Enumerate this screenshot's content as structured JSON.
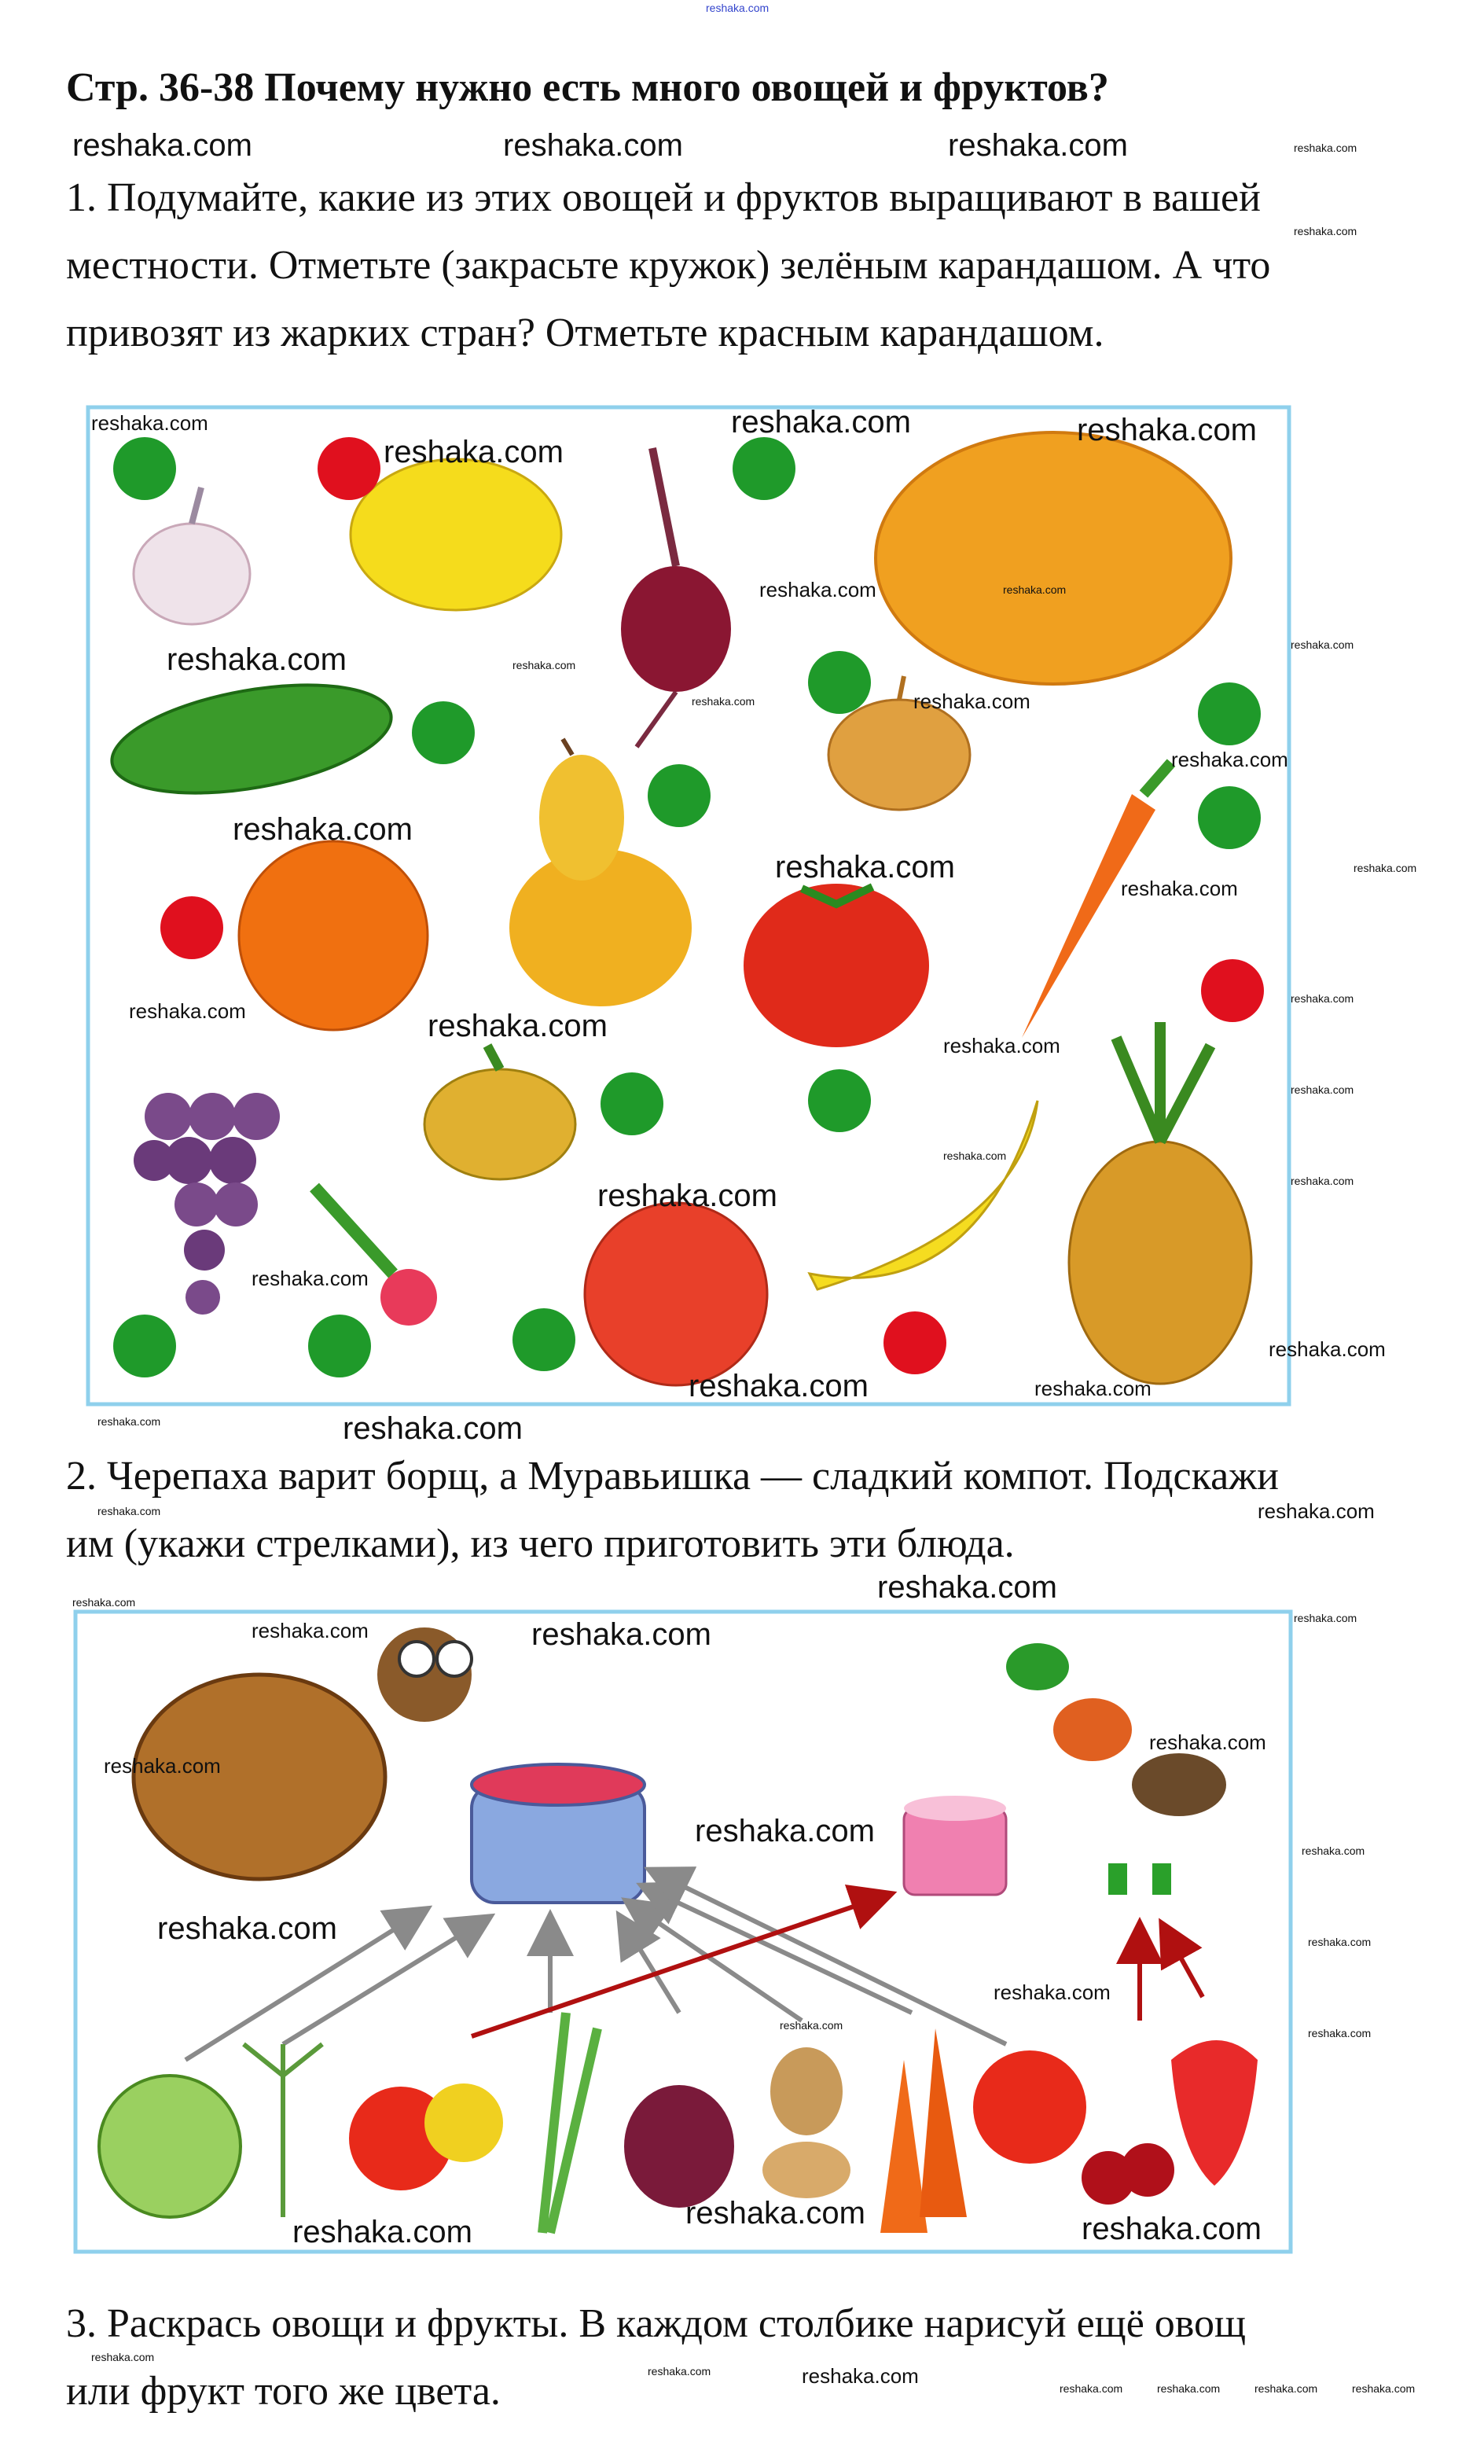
{
  "watermark": "reshaka.com",
  "title": "Стр. 36-38 Почему нужно есть много овощей и фруктов?",
  "task1": {
    "lines": [
      "1. Подумайте, какие из этих овощей и фруктов выращивают в вашей",
      "местности. Отметьте (закрасьте кружок) зелёным карандашом. А что",
      "привозят из жарких стран? Отметьте красным карандашом."
    ],
    "marks": {
      "green": "#1f9a2a",
      "red": "#e0101e"
    }
  },
  "task2": {
    "lines": [
      "2. Черепаха варит борщ, а Муравьишка — сладкий компот. Подскажи",
      "им (укажи стрелками), из чего приготовить эти блюда."
    ],
    "arrow_colors": {
      "borsch": "#8a8a8a",
      "compote": "#b01010"
    }
  },
  "task3": {
    "lines": [
      "3. Раскрась овощи и фрукты. В каждом столбике нарисуй ещё овощ",
      "или фрукт того же цвета."
    ]
  }
}
